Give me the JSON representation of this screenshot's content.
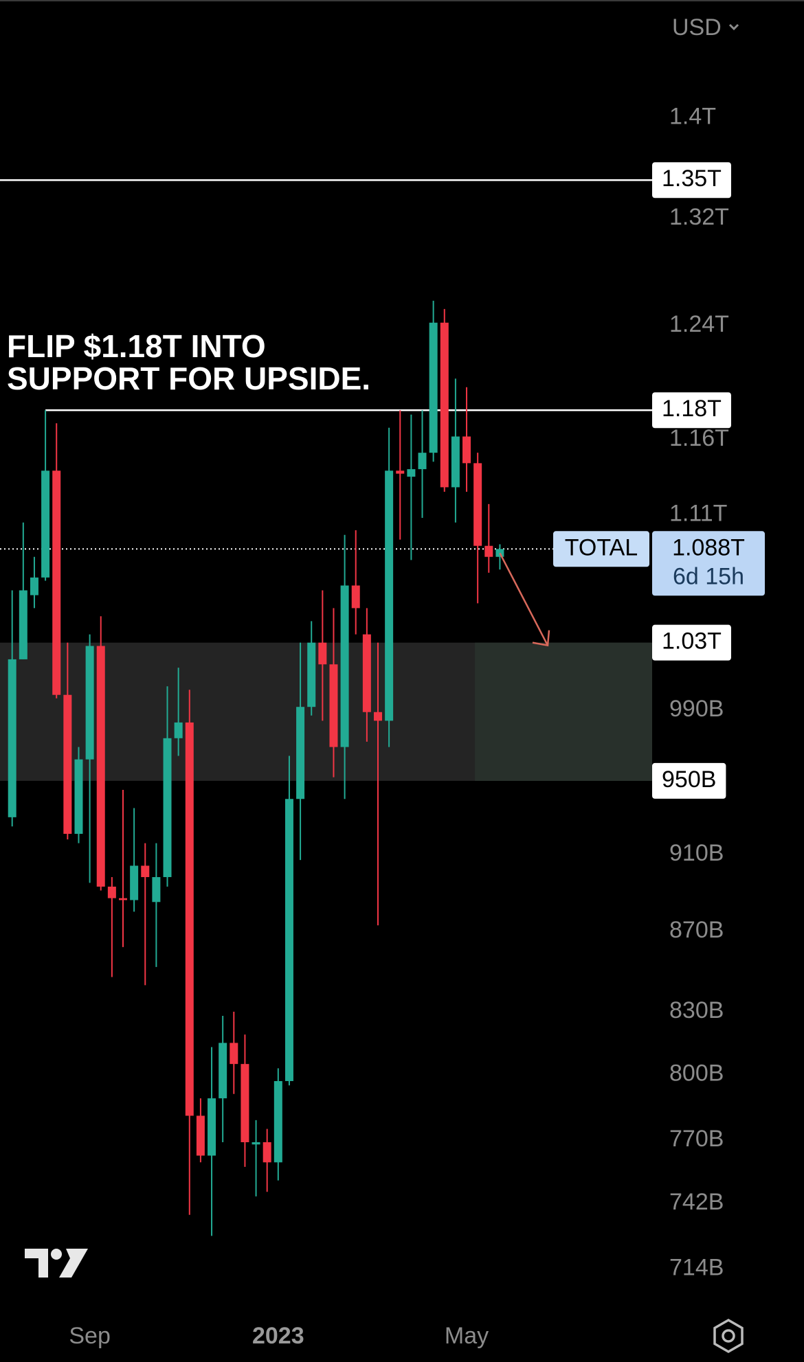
{
  "chart_data": {
    "type": "candlestick",
    "currency": "USD",
    "log_scale": true,
    "up_color": "#22ab94",
    "down_color": "#f23645",
    "categories": [
      null,
      null,
      null,
      null,
      null,
      null,
      null,
      "Sep",
      null,
      null,
      null,
      null,
      null,
      null,
      null,
      null,
      null,
      null,
      null,
      null,
      null,
      null,
      null,
      null,
      "2023",
      null,
      null,
      null,
      null,
      null,
      null,
      null,
      null,
      null,
      null,
      null,
      null,
      null,
      null,
      null,
      null,
      "May",
      null,
      null,
      null
    ],
    "open": [
      930,
      1020,
      1059,
      1070,
      1139,
      999,
      921,
      962,
      1028,
      893,
      887,
      886,
      904,
      885,
      898,
      974,
      983,
      781,
      763,
      789,
      815,
      805,
      768,
      769,
      760,
      797,
      940,
      992,
      1030,
      1017,
      969,
      1065,
      1035,
      989,
      984,
      1139,
      1135,
      1140,
      1151,
      1242,
      1128,
      1162,
      1144,
      1090,
      1083
    ],
    "high": [
      1062,
      1105,
      1083,
      1180,
      1171,
      1030,
      969,
      1035,
      1046,
      898,
      945,
      935,
      916,
      916,
      1004,
      1015,
      1002,
      789,
      813,
      828,
      830,
      819,
      779,
      775,
      803,
      964,
      1030,
      1043,
      1062,
      1051,
      1097,
      1100,
      1051,
      1030,
      1168,
      1180,
      1177,
      1180,
      1258,
      1252,
      1202,
      1196,
      1151,
      1117,
      1091
    ],
    "low": [
      925,
      1020,
      1051,
      1068,
      997,
      918,
      916,
      895,
      891,
      847,
      862,
      880,
      843,
      852,
      893,
      964,
      737,
      760,
      728,
      769,
      791,
      758,
      745,
      747,
      752,
      795,
      907,
      987,
      984,
      952,
      940,
      1035,
      972,
      873,
      969,
      1094,
      1081,
      1108,
      1145,
      1125,
      1105,
      1125,
      1054,
      1073,
      1075
    ],
    "close": [
      1020,
      1062,
      1070,
      1139,
      999,
      921,
      962,
      1028,
      893,
      887,
      886,
      904,
      898,
      898,
      974,
      983,
      781,
      763,
      789,
      815,
      805,
      769,
      769,
      760,
      797,
      940,
      992,
      1030,
      1017,
      969,
      1065,
      1051,
      989,
      984,
      1139,
      1137,
      1140,
      1151,
      1242,
      1128,
      1162,
      1144,
      1090,
      1083,
      1088
    ],
    "ylim": [
      700,
      1500
    ],
    "yticks": [
      {
        "value": 1400,
        "label": "1.4T"
      },
      {
        "value": 1320,
        "label": "1.32T"
      },
      {
        "value": 1240,
        "label": "1.24T"
      },
      {
        "value": 1160,
        "label": "1.16T"
      },
      {
        "value": 1110,
        "label": "1.11T"
      },
      {
        "value": 990,
        "label": "990B"
      },
      {
        "value": 910,
        "label": "910B"
      },
      {
        "value": 870,
        "label": "870B"
      },
      {
        "value": 830,
        "label": "830B"
      },
      {
        "value": 800,
        "label": "800B"
      },
      {
        "value": 770,
        "label": "770B"
      },
      {
        "value": 742,
        "label": "742B"
      },
      {
        "value": 714,
        "label": "714B"
      }
    ],
    "lines": [
      {
        "value": 1350,
        "label": "1.35T"
      },
      {
        "value": 1180,
        "label": "1.18T"
      },
      {
        "value": 1030,
        "label": "1.03T"
      },
      {
        "value": 950,
        "label": "950B"
      }
    ],
    "current": {
      "name": "TOTAL",
      "value": 1088,
      "label": "1.088T",
      "countdown": "6d 15h"
    },
    "annotation": [
      "FLIP $1.18T INTO",
      "SUPPORT FOR UPSIDE."
    ]
  }
}
